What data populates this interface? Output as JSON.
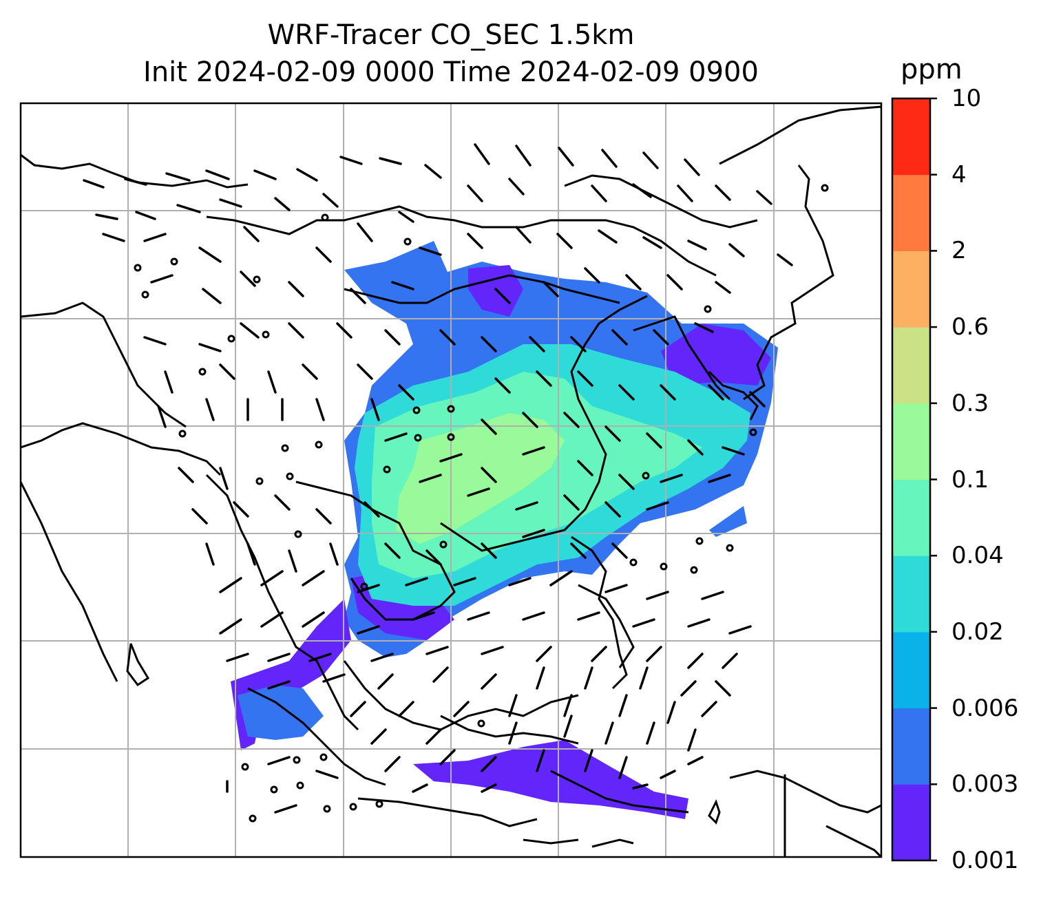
{
  "title": {
    "line1": "WRF-Tracer CO_SEC 1.5km",
    "line2": "Init 2024-02-09 0000 Time 2024-02-09 0900"
  },
  "colorbar": {
    "unit": "ppm",
    "levels": [
      "0.001",
      "0.003",
      "0.006",
      "0.02",
      "0.04",
      "0.1",
      "0.3",
      "0.6",
      "2",
      "4",
      "10"
    ],
    "colors": [
      "#6226fb",
      "#3574f0",
      "#0ab2ea",
      "#2edbd8",
      "#66f6bd",
      "#98fa98",
      "#cbe185",
      "#fdaf62",
      "#ff7a3e",
      "#ff2a16"
    ]
  },
  "map": {
    "projection": "regional",
    "gridlines": true,
    "field": "CO_SEC tracer concentration",
    "overlay": "wind barbs"
  }
}
